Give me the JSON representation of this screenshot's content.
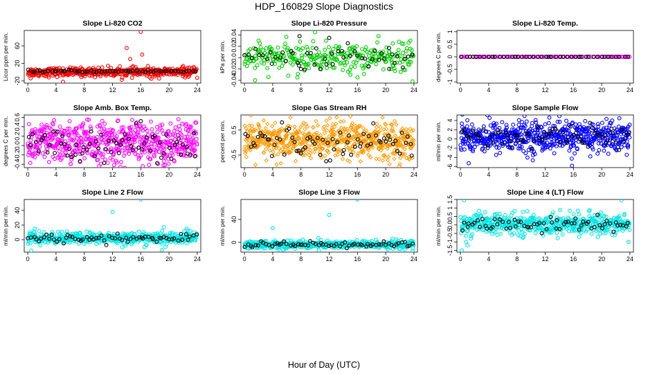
{
  "figure": {
    "title": "HDP_160829  Slope Diagnostics",
    "xlabel": "Hour of Day (UTC)"
  },
  "chart_data": [
    {
      "type": "scatter",
      "title": "Slope Li-820 CO2",
      "ylabel": "Licor ppm per min.",
      "xlim": [
        -0.5,
        24.5
      ],
      "xticks": [
        0,
        4,
        8,
        12,
        16,
        20,
        24
      ],
      "ylim": [
        -25,
        95
      ],
      "yticks": [
        -20,
        20,
        60
      ],
      "primary_color": "#ff0000",
      "mean_color": "#000000",
      "series": [
        {
          "name": "slopes",
          "x": [
            0,
            24
          ],
          "center": 0,
          "spread": 5,
          "n": 420,
          "outliers": [
            [
              0.4,
              -14
            ],
            [
              5.0,
              -22
            ],
            [
              14.0,
              55
            ],
            [
              14.5,
              30
            ],
            [
              16.0,
              92
            ],
            [
              16.2,
              40
            ],
            [
              17.5,
              -15
            ],
            [
              18.0,
              -10
            ],
            [
              22.0,
              14
            ],
            [
              10.0,
              10
            ]
          ]
        },
        {
          "name": "mean",
          "x": [
            0,
            24
          ],
          "center": 2,
          "spread": 1.5,
          "n": 60,
          "outliers": []
        }
      ]
    },
    {
      "type": "scatter",
      "title": "Slope Li-820 Pressure",
      "ylabel": "kPa per min.",
      "xlim": [
        -0.5,
        24.5
      ],
      "xticks": [
        0,
        4,
        8,
        12,
        16,
        20,
        24
      ],
      "ylim": [
        -0.045,
        0.048
      ],
      "yticks": [
        -0.04,
        -0.02,
        0.0,
        0.02,
        0.04
      ],
      "primary_color": "#00cc00",
      "mean_color": "#000000",
      "series": [
        {
          "name": "slopes",
          "x": [
            0,
            24
          ],
          "center": 0,
          "spread": 0.012,
          "n": 300,
          "outliers": [
            [
              10.0,
              0.045
            ],
            [
              2.0,
              0.03
            ],
            [
              15.0,
              -0.03
            ],
            [
              16.0,
              -0.035
            ],
            [
              23.8,
              -0.042
            ],
            [
              23.5,
              0.03
            ],
            [
              7.5,
              -0.035
            ],
            [
              21.0,
              0.025
            ],
            [
              1.5,
              -0.04
            ]
          ]
        },
        {
          "name": "mean",
          "x": [
            0,
            24
          ],
          "center": 0,
          "spread": 0.01,
          "n": 50,
          "outliers": [
            [
              7.8,
              0.038
            ],
            [
              12.0,
              0.035
            ],
            [
              8.0,
              -0.02
            ],
            [
              20.5,
              -0.02
            ]
          ]
        }
      ]
    },
    {
      "type": "scatter",
      "title": "Slope Li-820 Temp.",
      "ylabel": "degrees C per min.",
      "xlim": [
        -0.5,
        24.5
      ],
      "xticks": [
        0,
        4,
        8,
        12,
        16,
        20,
        24
      ],
      "ylim": [
        -1.05,
        1.05
      ],
      "yticks": [
        -1.0,
        -0.5,
        0.0,
        0.5,
        1.0
      ],
      "primary_color": "#ff00ff",
      "mean_color": "#000000",
      "series": [
        {
          "name": "slopes",
          "x": [
            0,
            24
          ],
          "center": 0,
          "spread": 0,
          "n": 90,
          "outliers": []
        },
        {
          "name": "mean",
          "x": [
            0,
            24
          ],
          "center": 0,
          "spread": 0,
          "n": 45,
          "outliers": []
        }
      ]
    },
    {
      "type": "scatter",
      "title": "Slope Amb. Box Temp.",
      "ylabel": "degrees C per min.",
      "xlim": [
        -0.5,
        24.5
      ],
      "xticks": [
        0,
        4,
        8,
        12,
        16,
        20,
        24
      ],
      "ylim": [
        -0.47,
        0.65
      ],
      "yticks": [
        -0.4,
        -0.2,
        0.0,
        0.2,
        0.4,
        0.6
      ],
      "primary_color": "#ff00ff",
      "mean_color": "#000000",
      "series": [
        {
          "name": "slopes",
          "x": [
            0,
            24
          ],
          "center": 0.05,
          "spread": 0.22,
          "n": 620,
          "outliers": []
        },
        {
          "name": "mean",
          "x": [
            0,
            24
          ],
          "center": 0.05,
          "spread": 0.18,
          "n": 70,
          "outliers": []
        }
      ]
    },
    {
      "type": "scatter",
      "title": "Slope Gas Stream RH",
      "ylabel": "percent per min.",
      "xlim": [
        -0.5,
        24.5
      ],
      "xticks": [
        0,
        4,
        8,
        12,
        16,
        20,
        24
      ],
      "ylim": [
        -1.0,
        1.1
      ],
      "yticks": [
        -0.5,
        0.5
      ],
      "primary_color": "#ff9900",
      "mean_color": "#000000",
      "series": [
        {
          "name": "slopes",
          "x": [
            0,
            24
          ],
          "center": 0.05,
          "spread": 0.38,
          "n": 650,
          "outliers": []
        },
        {
          "name": "mean",
          "x": [
            0,
            24
          ],
          "center": 0.05,
          "spread": 0.3,
          "n": 70,
          "outliers": []
        }
      ]
    },
    {
      "type": "scatter",
      "title": "Slope Sample Flow",
      "ylabel": "ml/min per min.",
      "xlim": [
        -0.5,
        24.5
      ],
      "xticks": [
        0,
        4,
        8,
        12,
        16,
        20,
        24
      ],
      "ylim": [
        -6.2,
        5.2
      ],
      "yticks": [
        -6,
        -4,
        -2,
        0,
        2,
        4
      ],
      "primary_color": "#0000ff",
      "mean_color": "#000000",
      "series": [
        {
          "name": "slopes",
          "x": [
            0,
            24
          ],
          "center": 0.5,
          "spread": 1.7,
          "n": 620,
          "outliers": [
            [
              15.8,
              -5.8
            ],
            [
              22.5,
              4.5
            ]
          ]
        },
        {
          "name": "mean",
          "x": [
            0,
            24
          ],
          "center": 0.5,
          "spread": 1.2,
          "n": 70,
          "outliers": []
        }
      ]
    },
    {
      "type": "scatter",
      "title": "Slope Line 2 Flow",
      "ylabel": "ml/min per min.",
      "xlim": [
        -0.5,
        24.5
      ],
      "xticks": [
        0,
        4,
        8,
        12,
        16,
        20,
        24
      ],
      "ylim": [
        -17,
        55
      ],
      "yticks": [
        0,
        20,
        40
      ],
      "primary_color": "#00e5e5",
      "mean_color": "#000000",
      "series": [
        {
          "name": "slopes",
          "x": [
            0,
            24
          ],
          "center": 2,
          "spread": 4,
          "n": 480,
          "outliers": [
            [
              16.0,
              55
            ],
            [
              12.0,
              38
            ],
            [
              0.5,
              -15
            ],
            [
              1.0,
              15
            ],
            [
              22.5,
              15
            ],
            [
              19.0,
              -14
            ],
            [
              19.5,
              -10
            ],
            [
              0.3,
              10
            ],
            [
              23.5,
              10
            ]
          ]
        },
        {
          "name": "mean",
          "x": [
            0,
            24
          ],
          "center": 2,
          "spread": 3,
          "n": 65,
          "outliers": []
        }
      ]
    },
    {
      "type": "scatter",
      "title": "Slope Line 3 Flow",
      "ylabel": "ml/min per min.",
      "xlim": [
        -0.5,
        24.5
      ],
      "xticks": [
        0,
        4,
        8,
        12,
        16,
        20,
        24
      ],
      "ylim": [
        -17,
        75
      ],
      "yticks": [
        0,
        40
      ],
      "primary_color": "#00e5e5",
      "mean_color": "#000000",
      "series": [
        {
          "name": "slopes",
          "x": [
            0,
            24
          ],
          "center": -4,
          "spread": 3.5,
          "n": 480,
          "outliers": [
            [
              16.0,
              75
            ],
            [
              12.0,
              48
            ],
            [
              4.0,
              25
            ],
            [
              23.8,
              -15
            ]
          ]
        },
        {
          "name": "mean",
          "x": [
            0,
            24
          ],
          "center": -4,
          "spread": 3,
          "n": 65,
          "outliers": []
        }
      ]
    },
    {
      "type": "scatter",
      "title": "Slope Line 4 (LT) Flow",
      "ylabel": "ml/min per min.",
      "xlim": [
        -0.5,
        24.5
      ],
      "xticks": [
        0,
        4,
        8,
        12,
        16,
        20,
        24
      ],
      "ylim": [
        -1.6,
        1.5
      ],
      "yticks": [
        -1.5,
        -1.0,
        -0.5,
        0.0,
        0.5,
        1.0,
        1.5
      ],
      "primary_color": "#00e5e5",
      "mean_color": "#000000",
      "series": [
        {
          "name": "slopes",
          "x": [
            0,
            24
          ],
          "center": 0.05,
          "spread": 0.3,
          "n": 520,
          "outliers": [
            [
              0.2,
              -1.5
            ],
            [
              0.8,
              -1.0
            ],
            [
              1.0,
              -1.2
            ],
            [
              22.8,
              1.45
            ],
            [
              0.5,
              1.45
            ],
            [
              1.5,
              -0.8
            ],
            [
              23.8,
              -1.0
            ]
          ]
        },
        {
          "name": "mean",
          "x": [
            0,
            24
          ],
          "center": 0.05,
          "spread": 0.22,
          "n": 65,
          "outliers": []
        }
      ]
    }
  ]
}
